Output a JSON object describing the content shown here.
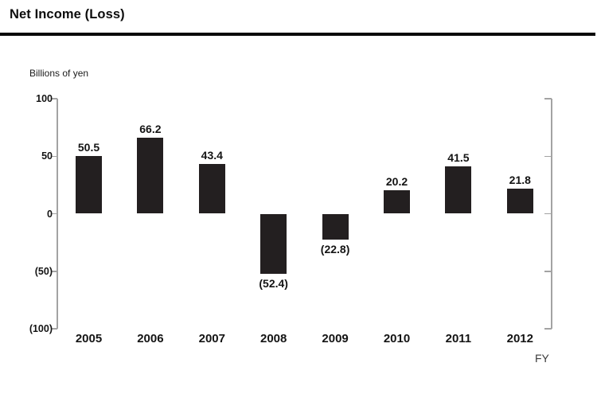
{
  "header": {
    "title": "Net Income (Loss)"
  },
  "chart_data": {
    "type": "bar",
    "title": "Net Income (Loss)",
    "unit_label": "Billions of yen",
    "x_axis_label": "FY",
    "categories": [
      "2005",
      "2006",
      "2007",
      "2008",
      "2009",
      "2010",
      "2011",
      "2012"
    ],
    "values": [
      50.5,
      66.2,
      43.4,
      -52.4,
      -22.8,
      20.2,
      41.5,
      21.8
    ],
    "value_labels": [
      "50.5",
      "66.2",
      "43.4",
      "(52.4)",
      "(22.8)",
      "20.2",
      "41.5",
      "21.8"
    ],
    "y_ticks": [
      {
        "value": 100,
        "label": "100"
      },
      {
        "value": 50,
        "label": "50"
      },
      {
        "value": 0,
        "label": "0"
      },
      {
        "value": -50,
        "label": "(50)"
      },
      {
        "value": -100,
        "label": "(100)"
      }
    ],
    "ylim": [
      -100,
      100
    ],
    "grid": false,
    "legend": "none",
    "bar_color": "#231f20",
    "axis_color": "#a3a3a3",
    "label_color": "#141414"
  }
}
